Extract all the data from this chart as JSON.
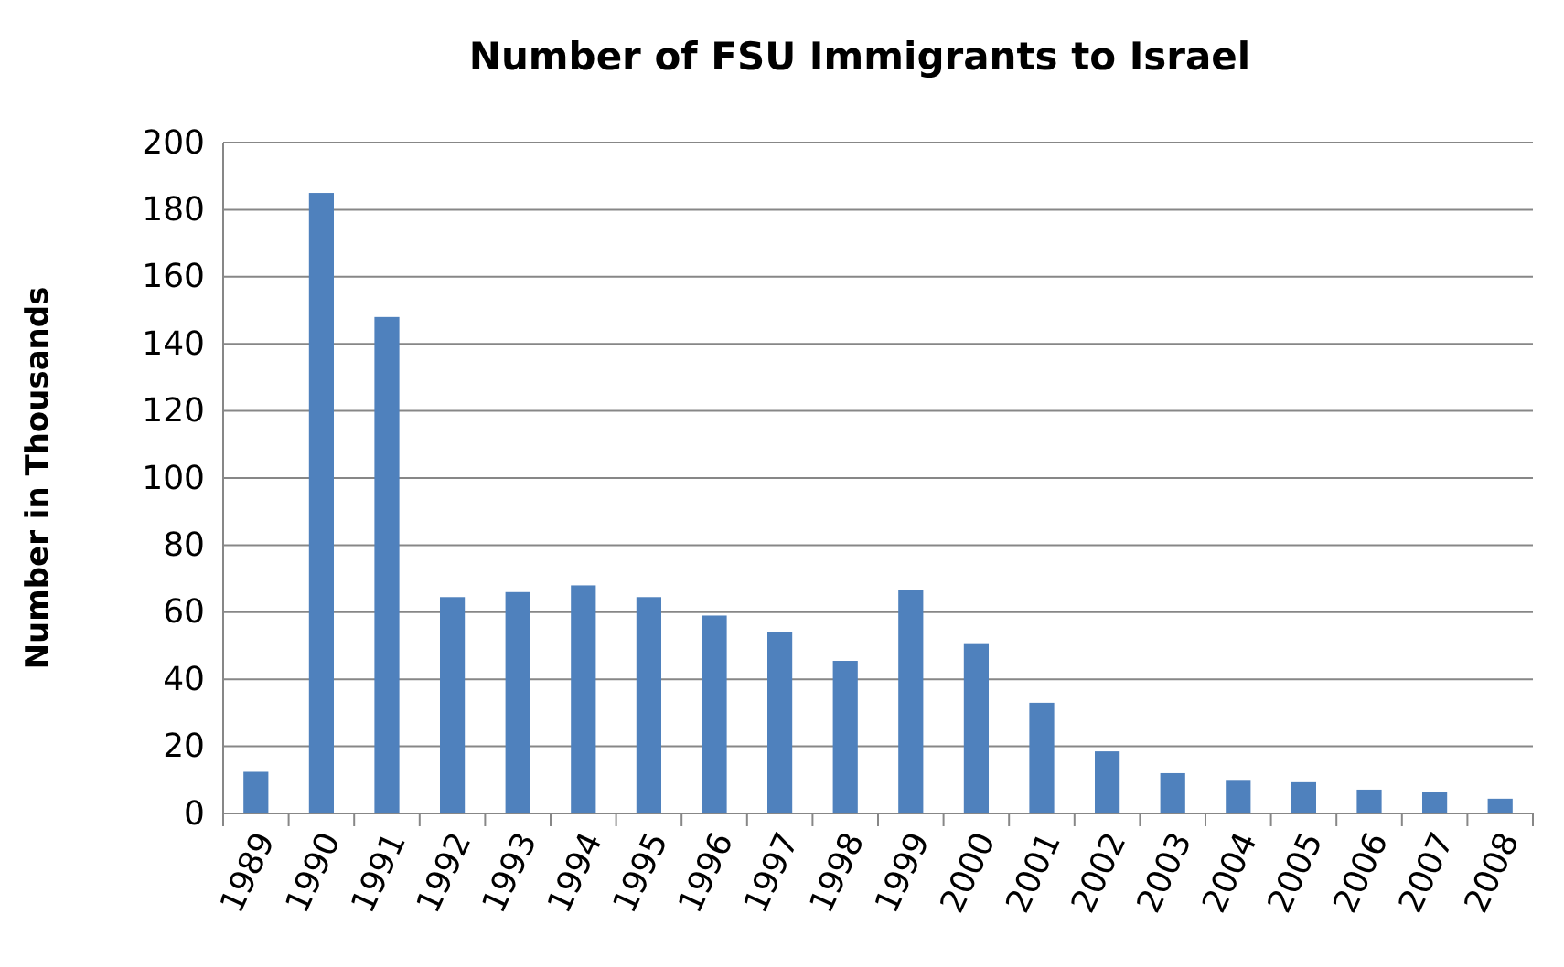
{
  "chart_data": {
    "type": "bar",
    "title": "Number of FSU Immigrants to Israel",
    "ylabel": "Number in Thousands",
    "categories": [
      "1989",
      "1990",
      "1991",
      "1992",
      "1993",
      "1994",
      "1995",
      "1996",
      "1997",
      "1998",
      "1999",
      "2000",
      "2001",
      "2002",
      "2003",
      "2004",
      "2005",
      "2006",
      "2007",
      "2008"
    ],
    "values": [
      12.4,
      185,
      148,
      64.5,
      66,
      68,
      64.5,
      59,
      54,
      45.5,
      66.5,
      50.5,
      33,
      18.5,
      12,
      10,
      9.3,
      7.1,
      6.5,
      4.4
    ],
    "color": "#4f81bd",
    "ylim": [
      0,
      200
    ],
    "yticks": [
      0,
      20,
      40,
      60,
      80,
      100,
      120,
      140,
      160,
      180,
      200
    ],
    "grid": "y"
  }
}
